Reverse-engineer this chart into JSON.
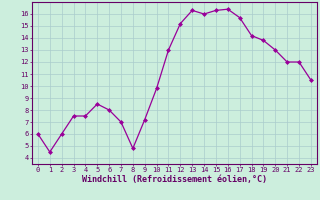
{
  "x": [
    0,
    1,
    2,
    3,
    4,
    5,
    6,
    7,
    8,
    9,
    10,
    11,
    12,
    13,
    14,
    15,
    16,
    17,
    18,
    19,
    20,
    21,
    22,
    23
  ],
  "y": [
    6.0,
    4.5,
    6.0,
    7.5,
    7.5,
    8.5,
    8.0,
    7.0,
    4.8,
    7.2,
    9.8,
    13.0,
    15.2,
    16.3,
    16.0,
    16.3,
    16.4,
    15.7,
    14.2,
    13.8,
    13.0,
    12.0,
    12.0,
    10.5
  ],
  "line_color": "#990099",
  "marker": "D",
  "markersize": 2.0,
  "linewidth": 0.9,
  "xlabel": "Windchill (Refroidissement éolien,°C)",
  "xlabel_fontsize": 6.0,
  "tick_fontsize": 5.0,
  "ylabel_values": [
    4,
    5,
    6,
    7,
    8,
    9,
    10,
    11,
    12,
    13,
    14,
    15,
    16
  ],
  "ylim": [
    3.5,
    17.0
  ],
  "xlim": [
    -0.5,
    23.5
  ],
  "xtick_labels": [
    "0",
    "1",
    "2",
    "3",
    "4",
    "5",
    "6",
    "7",
    "8",
    "9",
    "10",
    "11",
    "12",
    "13",
    "14",
    "15",
    "16",
    "17",
    "18",
    "19",
    "20",
    "21",
    "22",
    "23"
  ],
  "background_color": "#cceedd",
  "grid_color": "#aacccc",
  "spine_color": "#660066",
  "tick_color": "#660066",
  "label_color": "#660066"
}
